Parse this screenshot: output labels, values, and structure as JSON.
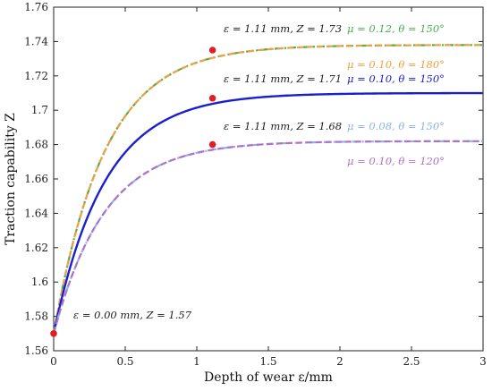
{
  "chart_data": {
    "type": "line",
    "xlabel": "Depth of wear ε/mm",
    "ylabel": "Traction capability Z",
    "xlim": [
      0,
      3
    ],
    "ylim": [
      1.56,
      1.76
    ],
    "xticks": [
      "0",
      "0.5",
      "1",
      "1.5",
      "2",
      "2.5",
      "3"
    ],
    "xtick_values": [
      0,
      0.5,
      1,
      1.5,
      2,
      2.5,
      3
    ],
    "yticks": [
      "1.56",
      "1.58",
      "1.6",
      "1.62",
      "1.64",
      "1.66",
      "1.68",
      "1.7",
      "1.72",
      "1.74",
      "1.76"
    ],
    "ytick_values": [
      1.56,
      1.58,
      1.6,
      1.62,
      1.64,
      1.66,
      1.68,
      1.7,
      1.72,
      1.74,
      1.76
    ],
    "grid": false,
    "series": [
      {
        "name": "μ = 0.12, θ = 150°",
        "color": "#4caf50",
        "dash": "dashdot",
        "start": 1.57,
        "plateau": 1.738,
        "rate": 2.8
      },
      {
        "name": "μ = 0.10, θ = 180°",
        "color": "#f0a040",
        "dash": "dashed",
        "start": 1.57,
        "plateau": 1.738,
        "rate": 2.8
      },
      {
        "name": "μ = 0.10, θ = 150°",
        "color": "#1a1fd0",
        "dash": "solid",
        "start": 1.57,
        "plateau": 1.71,
        "rate": 2.8
      },
      {
        "name": "μ = 0.08, θ = 150°",
        "color": "#8ab4e8",
        "dash": "dashdot",
        "start": 1.57,
        "plateau": 1.682,
        "rate": 2.8
      },
      {
        "name": "μ = 0.10, θ = 120°",
        "color": "#b070c8",
        "dash": "dashed",
        "start": 1.57,
        "plateau": 1.682,
        "rate": 2.8
      }
    ],
    "markers": [
      {
        "x": 0.0,
        "y": 1.57,
        "color": "#e02020"
      },
      {
        "x": 1.11,
        "y": 1.735,
        "color": "#e02020"
      },
      {
        "x": 1.11,
        "y": 1.707,
        "color": "#e02020"
      },
      {
        "x": 1.11,
        "y": 1.68,
        "color": "#e02020"
      }
    ],
    "annotations": [
      {
        "text": "ε = 1.11 mm,  Z = 1.73"
      },
      {
        "text": "ε = 1.11 mm,  Z = 1.71"
      },
      {
        "text": "ε = 1.11 mm,  Z = 1.68"
      },
      {
        "text": "ε = 0.00 mm,  Z = 1.57"
      }
    ],
    "legend_labels": [
      {
        "text": "μ = 0.12,  θ = 150°",
        "color": "#4caf50"
      },
      {
        "text": "μ = 0.10,  θ = 180°",
        "color": "#f0a040"
      },
      {
        "text": "μ = 0.10,  θ = 150°",
        "color": "#1a1fd0"
      },
      {
        "text": "μ = 0.08,  θ = 150°",
        "color": "#8ab4e8"
      },
      {
        "text": "μ = 0.10,  θ = 120°",
        "color": "#b070c8"
      }
    ]
  }
}
